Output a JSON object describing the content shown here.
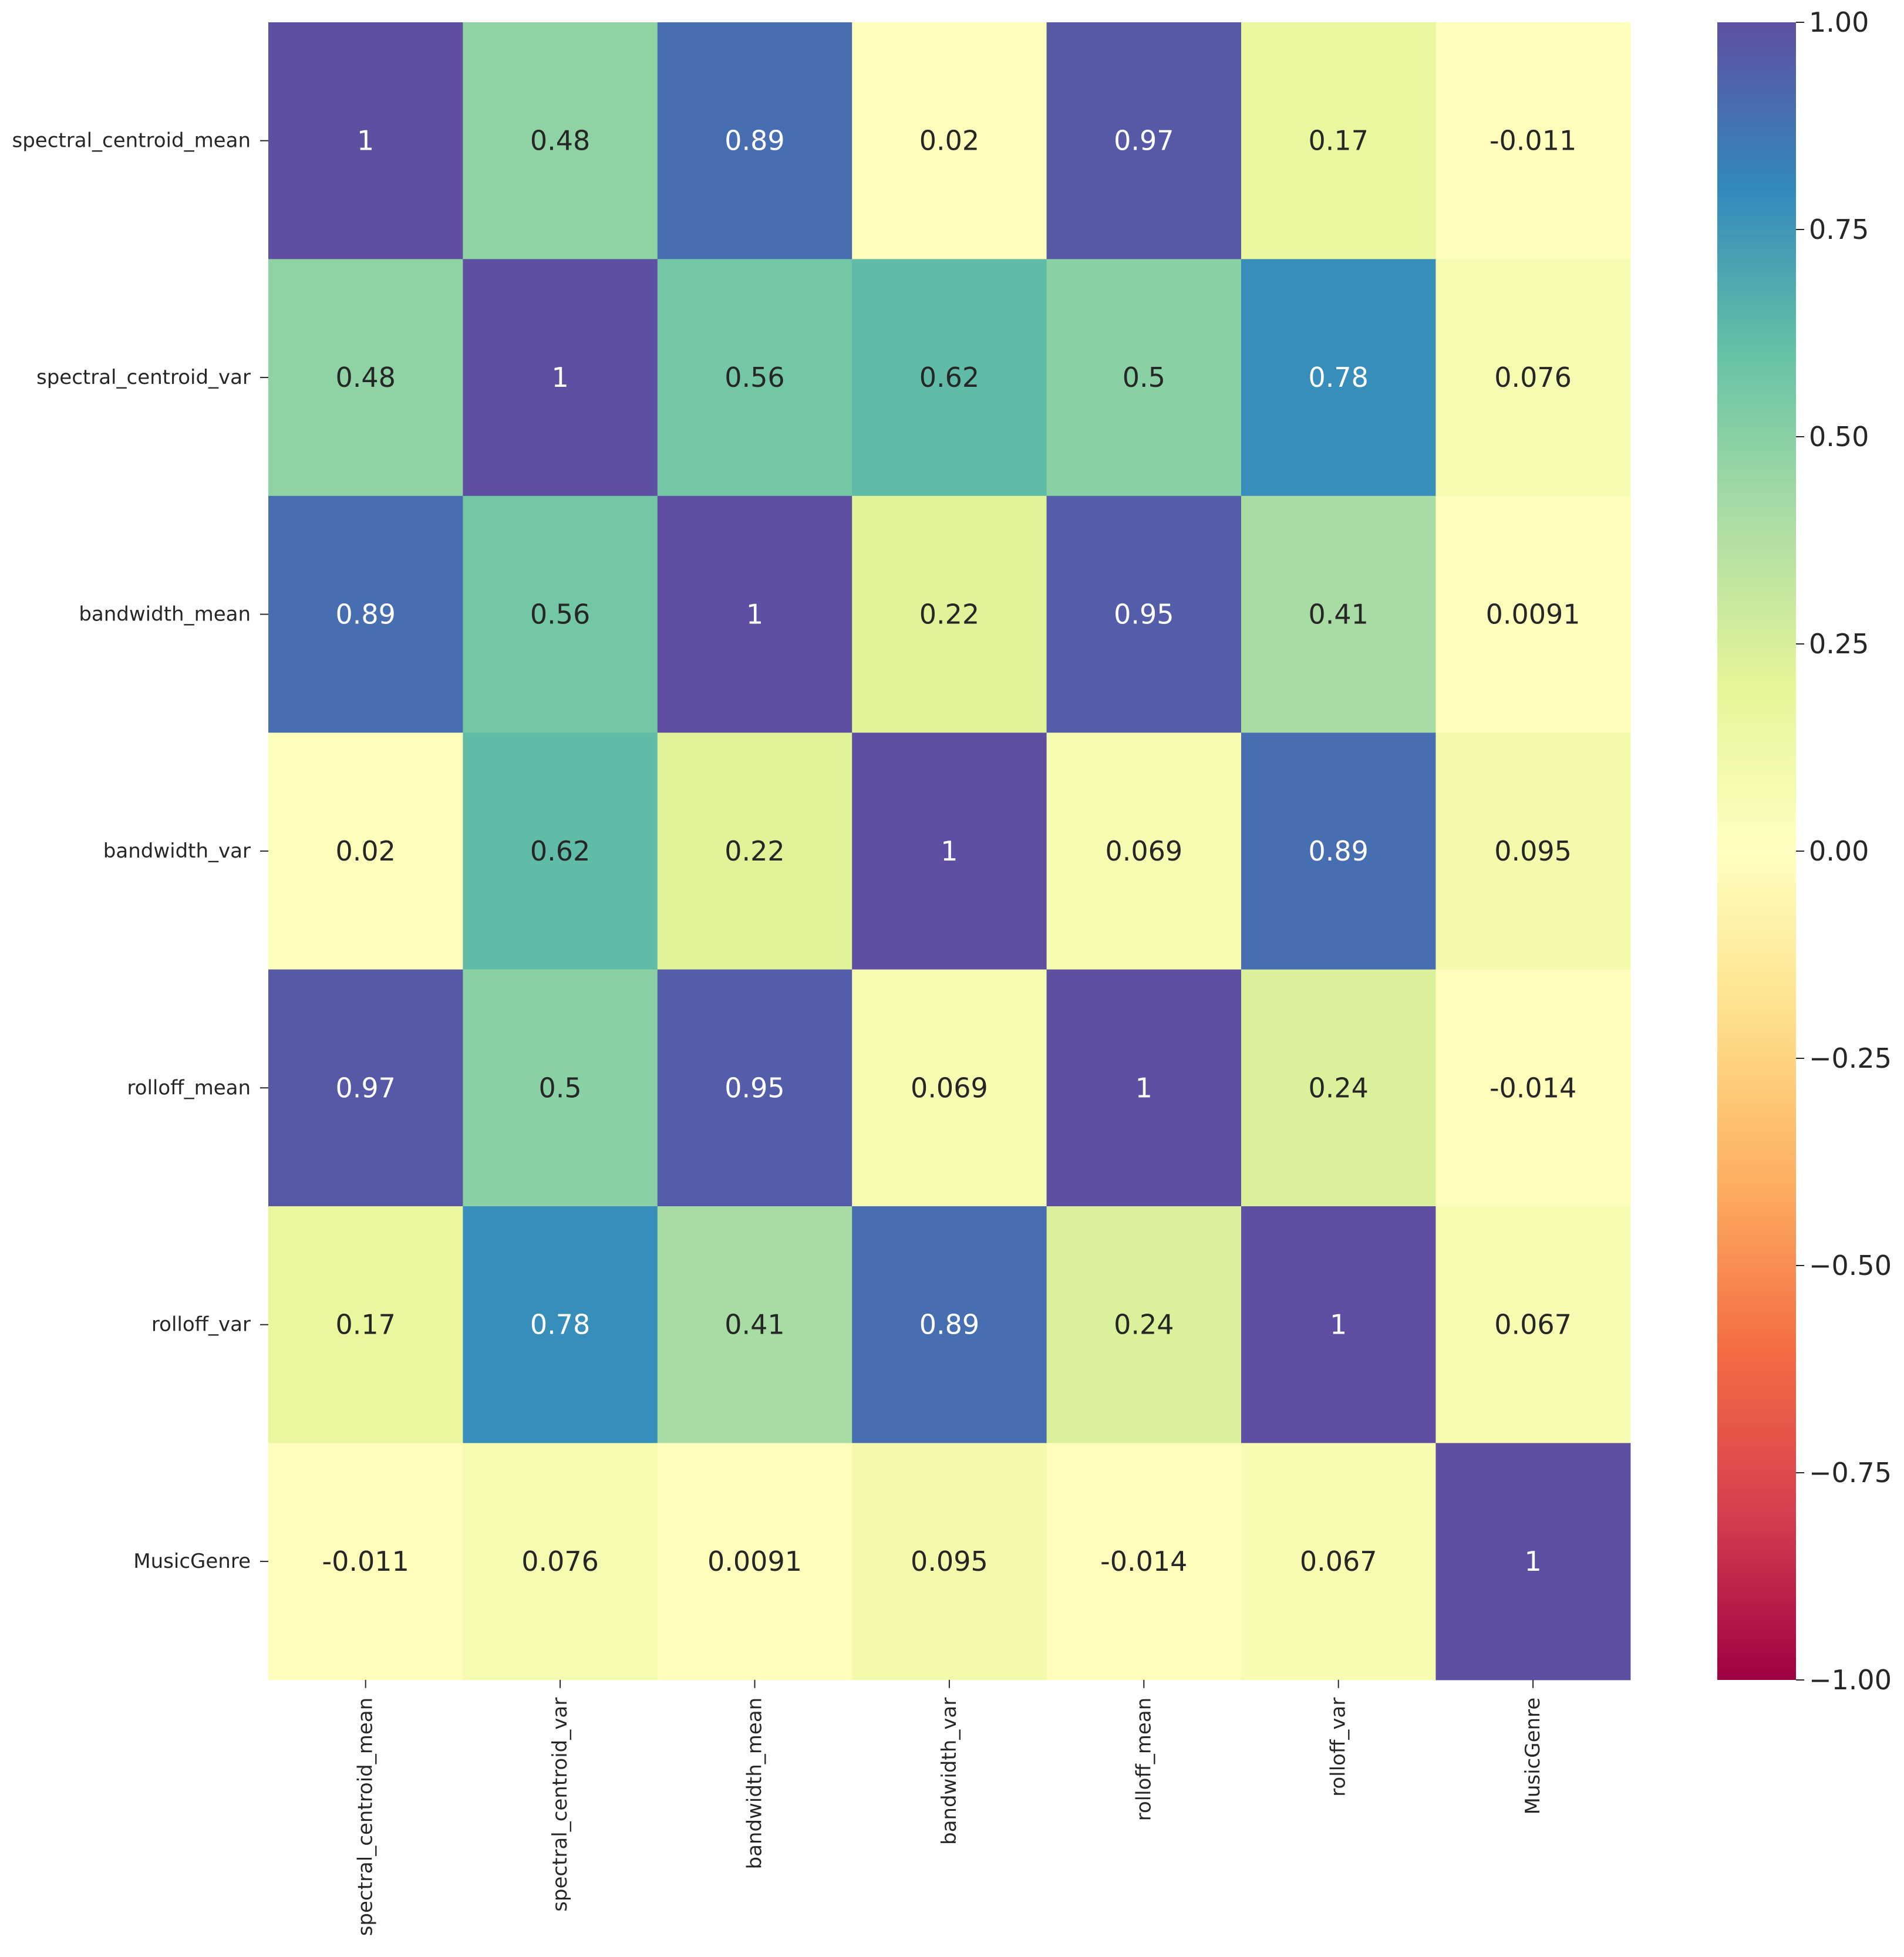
{
  "chart_data": {
    "type": "heatmap",
    "title": "",
    "colormap": "Spectral",
    "labels": [
      "spectral_centroid_mean",
      "spectral_centroid_var",
      "bandwidth_mean",
      "bandwidth_var",
      "rolloff_mean",
      "rolloff_var",
      "MusicGenre"
    ],
    "matrix": [
      [
        1,
        0.48,
        0.89,
        0.02,
        0.97,
        0.17,
        -0.011
      ],
      [
        0.48,
        1,
        0.56,
        0.62,
        0.5,
        0.78,
        0.076
      ],
      [
        0.89,
        0.56,
        1,
        0.22,
        0.95,
        0.41,
        0.0091
      ],
      [
        0.02,
        0.62,
        0.22,
        1,
        0.069,
        0.89,
        0.095
      ],
      [
        0.97,
        0.5,
        0.95,
        0.069,
        1,
        0.24,
        -0.014
      ],
      [
        0.17,
        0.78,
        0.41,
        0.89,
        0.24,
        1,
        0.067
      ],
      [
        -0.011,
        0.076,
        0.0091,
        0.095,
        -0.014,
        0.067,
        1
      ]
    ],
    "annotations": [
      [
        "1",
        "0.48",
        "0.89",
        "0.02",
        "0.97",
        "0.17",
        "-0.011"
      ],
      [
        "0.48",
        "1",
        "0.56",
        "0.62",
        "0.5",
        "0.78",
        "0.076"
      ],
      [
        "0.89",
        "0.56",
        "1",
        "0.22",
        "0.95",
        "0.41",
        "0.0091"
      ],
      [
        "0.02",
        "0.62",
        "0.22",
        "1",
        "0.069",
        "0.89",
        "0.095"
      ],
      [
        "0.97",
        "0.5",
        "0.95",
        "0.069",
        "1",
        "0.24",
        "-0.014"
      ],
      [
        "0.17",
        "0.78",
        "0.41",
        "0.89",
        "0.24",
        "1",
        "0.067"
      ],
      [
        "-0.011",
        "0.076",
        "0.0091",
        "0.095",
        "-0.014",
        "0.067",
        "1"
      ]
    ],
    "vmin": -1,
    "vmax": 1,
    "colorbar": {
      "ticks": [
        1.0,
        0.75,
        0.5,
        0.25,
        0.0,
        -0.25,
        -0.5,
        -0.75,
        -1.0
      ],
      "tick_labels": [
        "1.00",
        "0.75",
        "0.50",
        "0.25",
        "0.00",
        "−0.25",
        "−0.50",
        "−0.75",
        "−1.00"
      ]
    },
    "colors": {
      "stops": [
        "#9e0142",
        "#d53e4f",
        "#f46d43",
        "#fdae61",
        "#fee08b",
        "#ffffbf",
        "#e6f598",
        "#abdda4",
        "#66c2a5",
        "#3288bd",
        "#5e4fa2"
      ],
      "text_dark": "#262626",
      "text_light": "#ffffff",
      "axis": "#262626"
    }
  }
}
